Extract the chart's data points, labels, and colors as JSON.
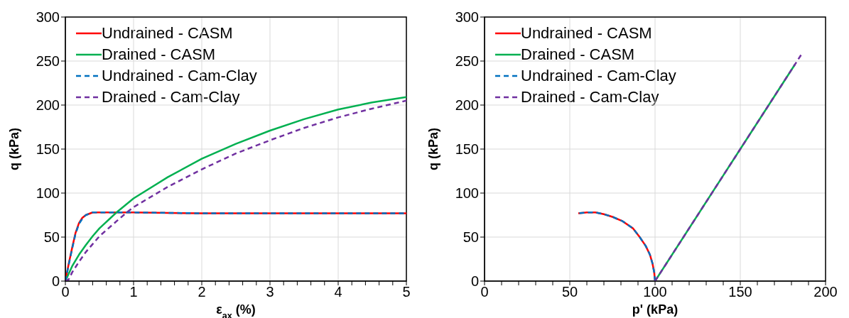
{
  "chart_data": [
    {
      "type": "line",
      "xlabel": "ε$_{ax}$ (%)",
      "ylabel": "q (kPa)",
      "xlim": [
        0,
        5
      ],
      "ylim": [
        0,
        300
      ],
      "xticks": [
        0,
        {
          "value": 0.2,
          "label": null
        },
        {
          "value": 0.4,
          "label": null
        },
        {
          "value": 0.6,
          "label": null
        },
        {
          "value": 0.8,
          "label": null
        },
        1,
        {
          "value": 1.2,
          "label": null
        },
        {
          "value": 1.4,
          "label": null
        },
        {
          "value": 1.6,
          "label": null
        },
        {
          "value": 1.8,
          "label": null
        },
        2,
        {
          "value": 2.2,
          "label": null
        },
        {
          "value": 2.4,
          "label": null
        },
        {
          "value": 2.6,
          "label": null
        },
        {
          "value": 2.8,
          "label": null
        },
        3,
        {
          "value": 3.2,
          "label": null
        },
        {
          "value": 3.4,
          "label": null
        },
        {
          "value": 3.6,
          "label": null
        },
        {
          "value": 3.8,
          "label": null
        },
        4,
        {
          "value": 4.2,
          "label": null
        },
        {
          "value": 4.4,
          "label": null
        },
        {
          "value": 4.6,
          "label": null
        },
        {
          "value": 4.8,
          "label": null
        },
        5
      ],
      "yticks": [
        0,
        50,
        100,
        150,
        200,
        250,
        300
      ],
      "grid": true,
      "legend": "top left",
      "marker": "none",
      "series": [
        {
          "name": "Undrained - CASM",
          "color": "#ff0000",
          "line_style": "solid",
          "x": [
            0,
            0.05,
            0.1,
            0.15,
            0.2,
            0.25,
            0.3,
            0.4,
            0.5,
            0.6,
            1,
            2,
            3,
            4,
            5
          ],
          "values": [
            0,
            20,
            38,
            55,
            66,
            72,
            75,
            78,
            78,
            78,
            78,
            77,
            77,
            77,
            77
          ]
        },
        {
          "name": "Drained - CASM",
          "color": "#00b050",
          "line_style": "solid",
          "x": [
            0,
            0.1,
            0.2,
            0.3,
            0.4,
            0.5,
            0.75,
            1,
            1.5,
            2,
            2.5,
            3,
            3.5,
            4,
            4.5,
            5
          ],
          "values": [
            0,
            17,
            30,
            41,
            51,
            60,
            78,
            94,
            118,
            139,
            156,
            171,
            184,
            195,
            203,
            209
          ]
        },
        {
          "name": "Undrained - Cam-Clay",
          "color": "#0070c0",
          "line_style": "dashed",
          "x": [
            0,
            0.05,
            0.1,
            0.15,
            0.2,
            0.25,
            0.3,
            0.4,
            0.5,
            0.6,
            1,
            2,
            3,
            4,
            5
          ],
          "values": [
            0,
            19,
            37,
            54,
            65,
            71,
            75,
            78,
            78,
            78,
            78,
            77,
            77,
            77,
            77
          ]
        },
        {
          "name": "Drained - Cam-Clay",
          "color": "#7030a0",
          "line_style": "dashed",
          "x": [
            0,
            0.05,
            0.1,
            0.2,
            0.3,
            0.4,
            0.5,
            0.75,
            0.9,
            1,
            1.5,
            2,
            2.5,
            3,
            3.5,
            4,
            4.5,
            5
          ],
          "values": [
            0,
            2,
            10,
            22,
            33,
            42,
            51,
            68,
            78,
            84,
            107,
            127,
            145,
            160,
            174,
            186,
            196,
            205
          ]
        }
      ]
    },
    {
      "type": "line",
      "xlabel": "p' (kPa)",
      "ylabel": "q (kPa)",
      "xlim": [
        0,
        200
      ],
      "ylim": [
        0,
        300
      ],
      "xticks": [
        0,
        {
          "value": 10,
          "label": null
        },
        {
          "value": 20,
          "label": null
        },
        {
          "value": 30,
          "label": null
        },
        {
          "value": 40,
          "label": null
        },
        50,
        {
          "value": 60,
          "label": null
        },
        {
          "value": 70,
          "label": null
        },
        {
          "value": 80,
          "label": null
        },
        {
          "value": 90,
          "label": null
        },
        100,
        {
          "value": 110,
          "label": null
        },
        {
          "value": 120,
          "label": null
        },
        {
          "value": 130,
          "label": null
        },
        {
          "value": 140,
          "label": null
        },
        150,
        {
          "value": 160,
          "label": null
        },
        {
          "value": 170,
          "label": null
        },
        {
          "value": 180,
          "label": null
        },
        {
          "value": 190,
          "label": null
        },
        200
      ],
      "yticks": [
        0,
        50,
        100,
        150,
        200,
        250,
        300
      ],
      "grid": true,
      "legend": "top left",
      "marker": "none",
      "series": [
        {
          "name": "Undrained - CASM",
          "color": "#ff0000",
          "line_style": "solid",
          "x": [
            100,
            99.5,
            98.5,
            97,
            94.5,
            91,
            87,
            81,
            75,
            70,
            65,
            60,
            55
          ],
          "values": [
            0,
            10,
            20,
            30,
            40,
            50,
            60,
            68,
            73,
            76,
            78,
            78,
            77
          ]
        },
        {
          "name": "Drained - CASM",
          "color": "#00b050",
          "line_style": "solid",
          "x": [
            100,
            150,
            182
          ],
          "values": [
            0,
            150,
            246
          ]
        },
        {
          "name": "Undrained - Cam-Clay",
          "color": "#0070c0",
          "line_style": "dashed",
          "x": [
            100,
            99.5,
            98.5,
            97,
            94.5,
            91,
            87,
            81,
            75,
            70,
            65,
            60,
            55
          ],
          "values": [
            0,
            10,
            20,
            30,
            40,
            50,
            60,
            68,
            73,
            76,
            78,
            78,
            77
          ]
        },
        {
          "name": "Drained - Cam-Clay",
          "color": "#7030a0",
          "line_style": "dashed",
          "x": [
            100,
            150,
            186
          ],
          "values": [
            0,
            150,
            258
          ]
        }
      ]
    }
  ]
}
